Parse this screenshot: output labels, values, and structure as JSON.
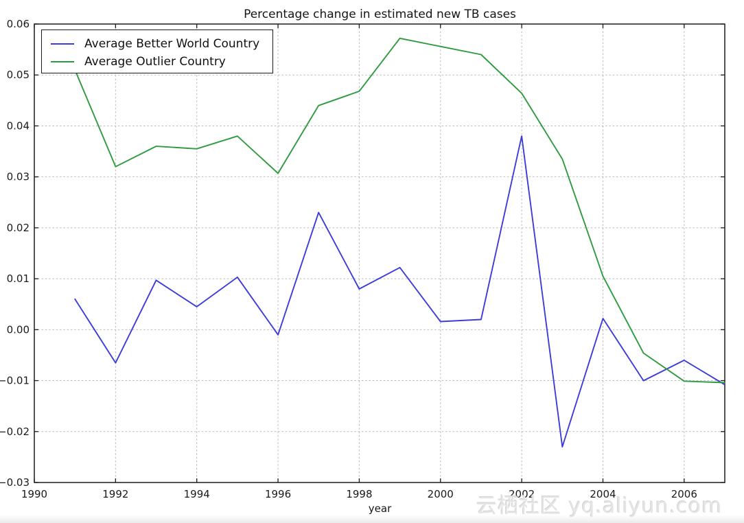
{
  "watermark": {
    "text": "云栖社区 yq.aliyun.com"
  },
  "chart_data": {
    "type": "line",
    "title": "Percentage change in estimated new TB cases",
    "xlabel": "year",
    "ylabel": "",
    "xlim": [
      1990,
      2007
    ],
    "ylim": [
      -0.03,
      0.06
    ],
    "grid": true,
    "grid_style": "dashed",
    "legend_position": "upper-left",
    "xticks": [
      1990,
      1992,
      1994,
      1996,
      1998,
      2000,
      2002,
      2004,
      2006
    ],
    "xtick_labels": [
      "1990",
      "1992",
      "1994",
      "1996",
      "1998",
      "2000",
      "2002",
      "2004",
      "2006"
    ],
    "ytick_values": [
      0.06,
      0.05,
      0.04,
      0.03,
      0.02,
      0.01,
      0.0,
      -0.01,
      -0.02,
      -0.03
    ],
    "ytick_labels": [
      "0.06",
      "0.05",
      "0.04",
      "0.03",
      "0.02",
      "0.01",
      "0.00",
      "−0.01",
      "−0.02",
      "−0.03"
    ],
    "x": [
      1991,
      1992,
      1993,
      1994,
      1995,
      1996,
      1997,
      1998,
      1999,
      2000,
      2001,
      2002,
      2003,
      2004,
      2005,
      2006,
      2007
    ],
    "series": [
      {
        "name": "Average Better World Country",
        "color": "#3c3cd9",
        "values": [
          0.006,
          -0.0065,
          0.0097,
          0.0045,
          0.0103,
          -0.001,
          0.023,
          0.008,
          0.0122,
          0.0016,
          0.002,
          0.038,
          -0.023,
          0.0022,
          -0.01,
          -0.006,
          -0.0108
        ]
      },
      {
        "name": "Average Outlier Country",
        "color": "#2e9b3e",
        "values": [
          0.051,
          0.032,
          0.036,
          0.0355,
          0.038,
          0.0307,
          0.044,
          0.0468,
          0.0572,
          0.0556,
          0.054,
          0.0464,
          0.0335,
          0.0105,
          -0.0046,
          -0.0101,
          -0.0104
        ]
      }
    ]
  }
}
